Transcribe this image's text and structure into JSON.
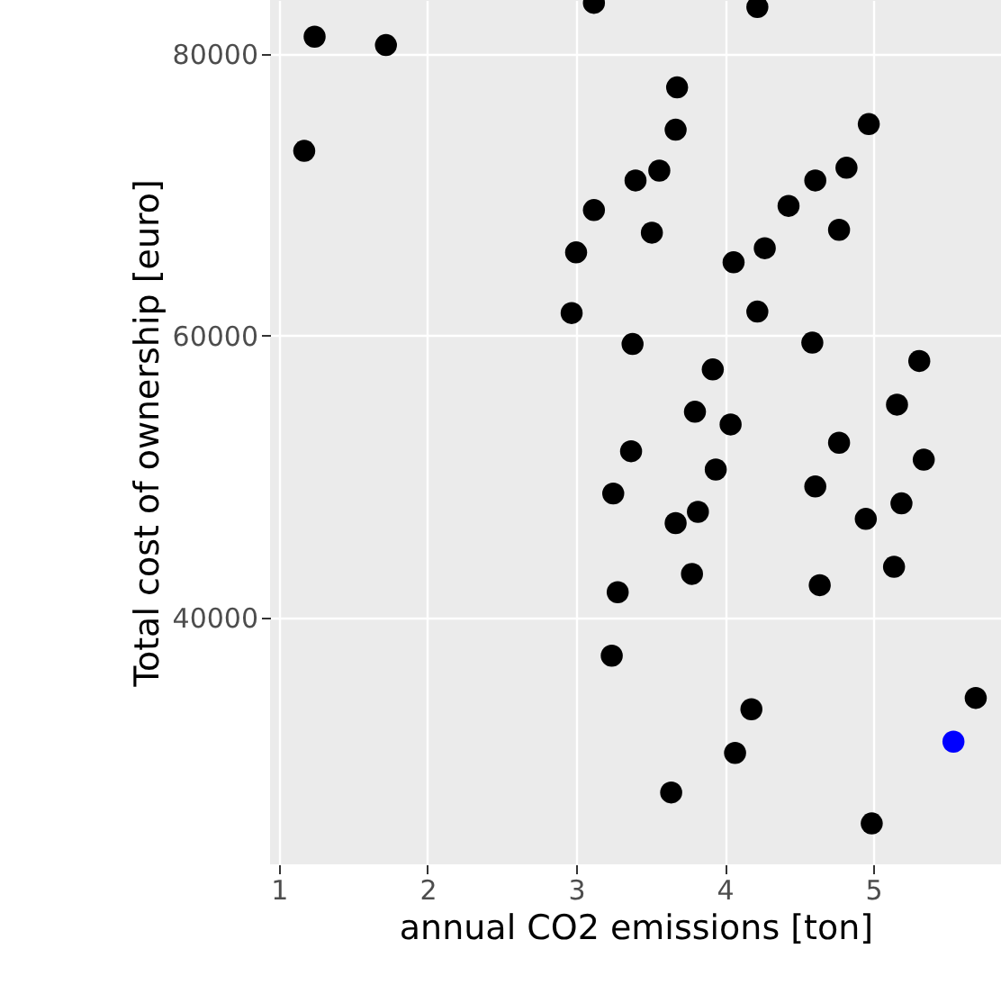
{
  "chart_data": {
    "type": "scatter",
    "xlabel": "annual CO2 emissions [ton]",
    "ylabel": "Total cost of ownership [euro]",
    "xlim": [
      0.94,
      5.86
    ],
    "xticks": [
      1,
      2,
      3,
      4,
      5
    ],
    "ylim": [
      22500,
      83800
    ],
    "yticks": [
      40000,
      60000,
      80000
    ],
    "grid": true,
    "marker": "circle",
    "series": [
      {
        "color": "#000000",
        "x": [
          1.24,
          1.72,
          1.17,
          3.12,
          4.22,
          3.12,
          3.0,
          2.97,
          3.68,
          3.67,
          3.4,
          3.56,
          3.51,
          4.06,
          4.27,
          4.43,
          4.61,
          4.82,
          4.77,
          4.97,
          4.22,
          3.38,
          4.59,
          5.31,
          3.92,
          3.8,
          4.04,
          5.16,
          3.37,
          3.94,
          3.25,
          3.67,
          3.82,
          3.78,
          3.28,
          3.24,
          4.77,
          5.34,
          4.61,
          5.19,
          4.95,
          5.14,
          4.64,
          5.69,
          4.18,
          4.07,
          3.64,
          4.99
        ],
        "values": [
          81200,
          80600,
          73100,
          83600,
          83300,
          68900,
          65900,
          61600,
          77600,
          74600,
          71000,
          71700,
          67300,
          65200,
          66200,
          69200,
          71000,
          71900,
          67500,
          75000,
          61700,
          59400,
          59500,
          58200,
          57600,
          54600,
          53700,
          55100,
          51800,
          50500,
          48800,
          46700,
          47500,
          43100,
          41800,
          37300,
          52400,
          51200,
          49300,
          48100,
          47000,
          43600,
          42300,
          34300,
          33500,
          30400,
          27600,
          25400
        ]
      },
      {
        "color": "#0000ff",
        "x": [
          5.54
        ],
        "values": [
          31200
        ]
      }
    ]
  }
}
